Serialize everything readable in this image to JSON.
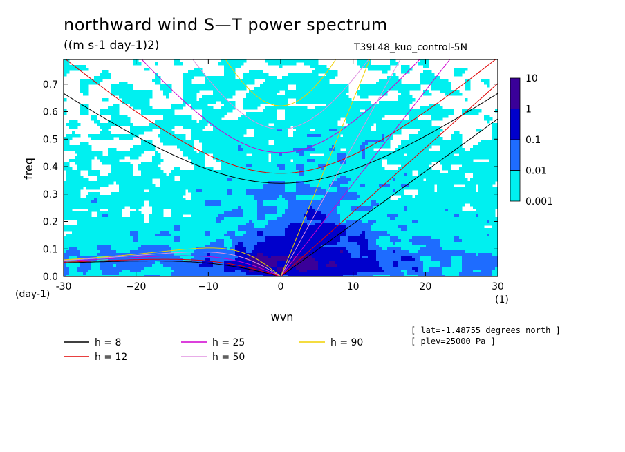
{
  "title": "northward wind S—T power spectrum",
  "units": "((m s-1 day-1)2)",
  "case_id": "T39L48_kuo_control-5N",
  "meta": [
    "[ lat=-1.48755 degrees_north ]",
    "[ plev=25000 Pa ]"
  ],
  "chart_data": {
    "type": "heatmap",
    "xlabel": "wvn",
    "ylabel": "freq",
    "x_unit": "(1)",
    "y_unit": "(day-1)",
    "xlim": [
      -30,
      30
    ],
    "ylim": [
      0,
      0.79
    ],
    "x_ticks": [
      -30,
      -20,
      -10,
      0,
      10,
      20,
      30
    ],
    "x_tick_labels": [
      "-30",
      "−20",
      "−10",
      "0",
      "10",
      "20",
      "30"
    ],
    "y_ticks": [
      0.0,
      0.1,
      0.2,
      0.3,
      0.4,
      0.5,
      0.6,
      0.7
    ],
    "y_tick_labels": [
      "0.0",
      "0.1",
      "0.2",
      "0.3",
      "0.4",
      "0.5",
      "0.6",
      "0.7"
    ],
    "colorbar": {
      "levels": [
        0.001,
        0.01,
        0.1,
        1,
        10
      ],
      "labels": [
        "0.001",
        "0.01",
        "0.1",
        "1",
        "10"
      ],
      "colors": [
        "#00f0f0",
        "#1e6cff",
        "#0000cc",
        "#3a0099"
      ]
    },
    "dispersion_curves": [
      {
        "name": "h =  8",
        "h": 8,
        "color": "#000000"
      },
      {
        "name": "h = 12",
        "h": 12,
        "color": "#e00000"
      },
      {
        "name": "h = 25",
        "h": 25,
        "color": "#d000d0"
      },
      {
        "name": "h = 50",
        "h": 50,
        "color": "#e090e0"
      },
      {
        "name": "h = 90",
        "h": 90,
        "color": "#f0d000"
      }
    ]
  }
}
